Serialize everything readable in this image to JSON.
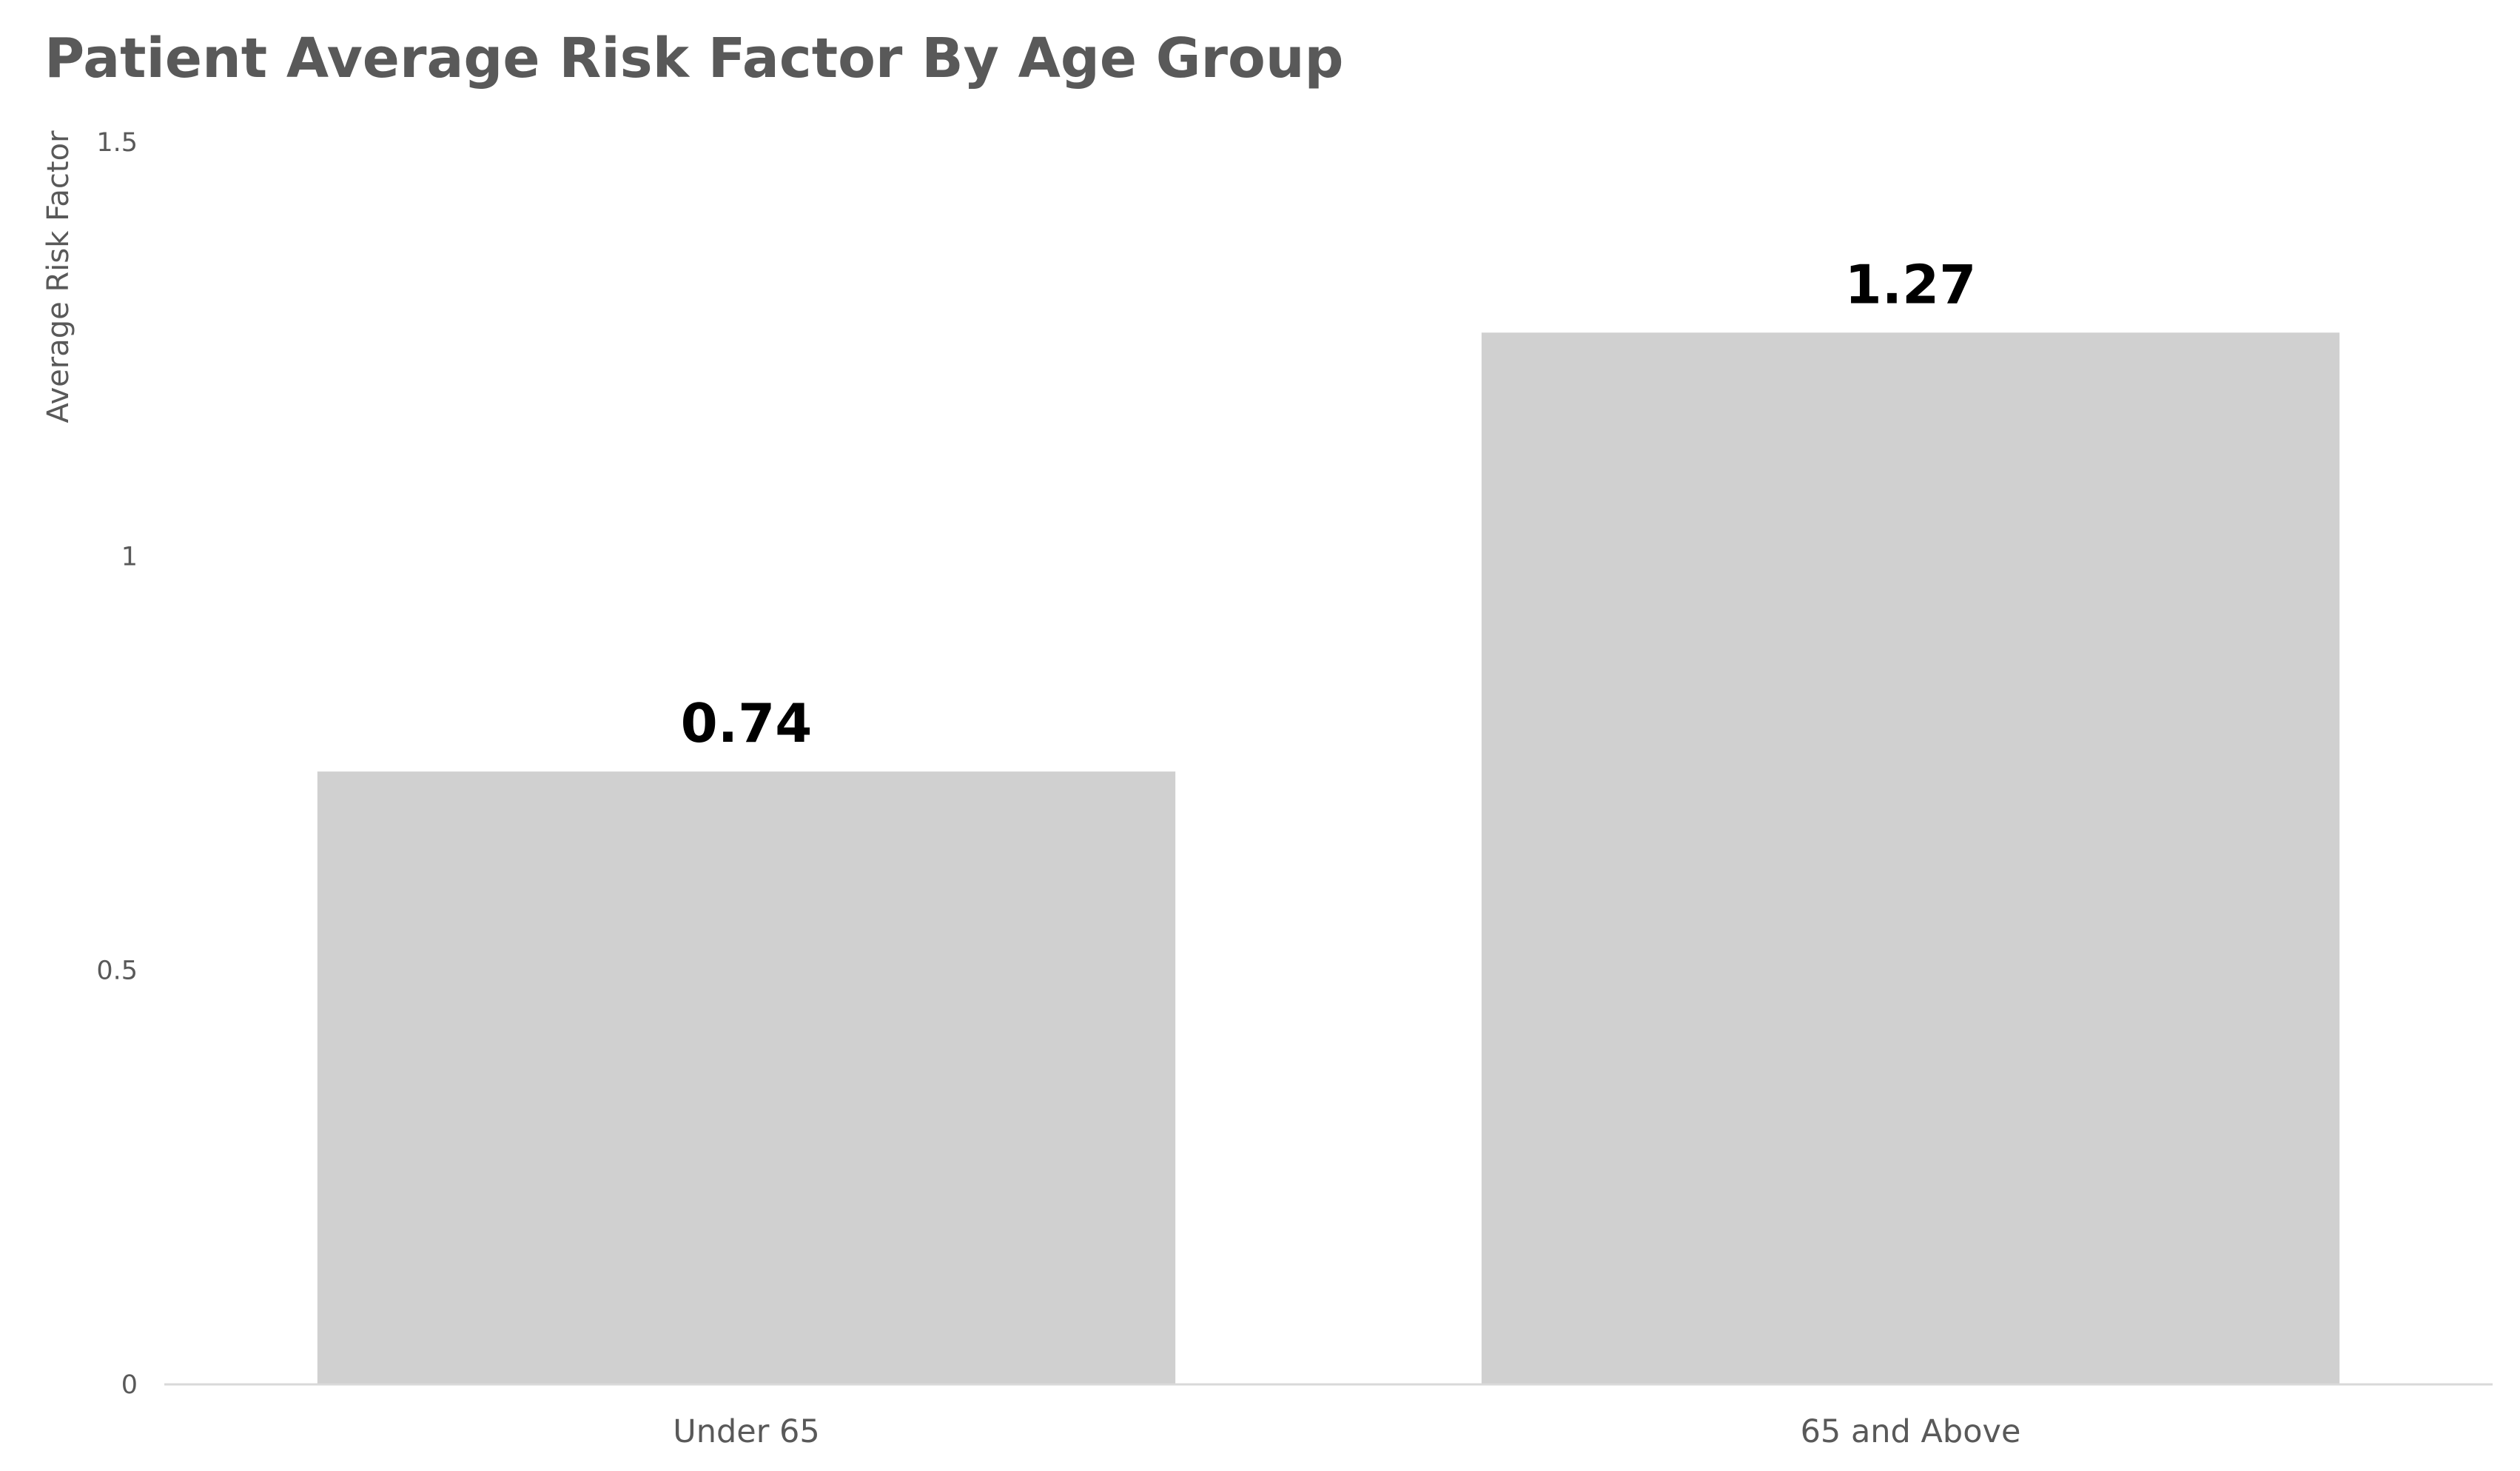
{
  "chart_data": {
    "type": "bar",
    "title": "Patient Average Risk Factor By Age Group",
    "ylabel": "Average Risk Factor",
    "xlabel": "",
    "categories": [
      "Under 65",
      "65 and Above"
    ],
    "values": [
      0.74,
      1.27
    ],
    "data_labels": [
      "0.74",
      "1.27"
    ],
    "ylim": [
      0,
      1.5
    ],
    "yticks": [
      0,
      0.5,
      1,
      1.5
    ],
    "ytick_labels": [
      "0",
      "0.5",
      "1",
      "1.5"
    ],
    "bar_color": "#d0d0d0",
    "axis_color": "#d9d9d9",
    "text_color": "#595959",
    "data_label_color": "#000000",
    "grid": false,
    "legend": "none"
  }
}
